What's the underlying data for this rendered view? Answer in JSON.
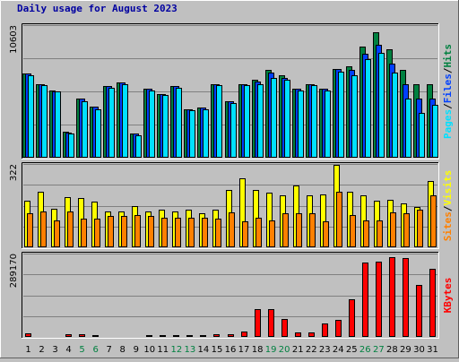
{
  "chart_data": {
    "type": "bar",
    "title": "Daily usage for August 2023",
    "categories": [
      "1",
      "2",
      "3",
      "4",
      "5",
      "6",
      "7",
      "8",
      "9",
      "10",
      "11",
      "12",
      "13",
      "14",
      "15",
      "16",
      "17",
      "18",
      "19",
      "20",
      "21",
      "22",
      "23",
      "24",
      "25",
      "26",
      "27",
      "28",
      "29",
      "30",
      "31"
    ],
    "weekend_days": [
      "5",
      "6",
      "12",
      "13",
      "19",
      "20",
      "26",
      "27"
    ],
    "colors": {
      "hits": "#008040",
      "files": "#0040ff",
      "pages": "#00e0ff",
      "visits": "#ffff00",
      "sites": "#ff8000",
      "kbytes": "#ff0000",
      "weekday_label": "#000000",
      "weekend_label": "#008040",
      "title": "#0000a0",
      "separator": "#000000"
    },
    "panels": [
      {
        "name": "hits-files-pages",
        "max_label": "10603",
        "ymax": 10603,
        "legend": [
          {
            "label": "Pages",
            "color": "#00e0ff"
          },
          {
            "label": "/",
            "color": "#000000"
          },
          {
            "label": "Files",
            "color": "#0040ff"
          },
          {
            "label": "/",
            "color": "#000000"
          },
          {
            "label": "Hits",
            "color": "#008040"
          }
        ],
        "series": [
          {
            "name": "Hits",
            "color": "#008040",
            "values": [
              6700,
              5900,
              5400,
              2100,
              4700,
              4100,
              5700,
              6000,
              1900,
              5500,
              5100,
              5700,
              3900,
              4000,
              5900,
              4500,
              5900,
              6200,
              7000,
              6600,
              5500,
              5900,
              5500,
              7100,
              7300,
              8900,
              10000,
              8700,
              7000,
              5900,
              5900
            ]
          },
          {
            "name": "Files",
            "color": "#0040ff",
            "values": [
              6700,
              5900,
              5300,
              2000,
              4700,
              4100,
              5700,
              6000,
              1900,
              5500,
              5100,
              5700,
              3900,
              4000,
              5900,
              4500,
              5900,
              6100,
              6800,
              6400,
              5500,
              5900,
              5500,
              7100,
              7000,
              8300,
              9000,
              7500,
              5900,
              4700,
              4700
            ]
          },
          {
            "name": "Pages",
            "color": "#00e0ff",
            "values": [
              6600,
              5800,
              5300,
              1900,
              4500,
              3900,
              5600,
              5900,
              1800,
              5400,
              5000,
              5600,
              3800,
              3900,
              5800,
              4400,
              5800,
              5900,
              6400,
              6200,
              5400,
              5800,
              5400,
              6900,
              6600,
              7900,
              8400,
              6800,
              4700,
              3600,
              4200
            ]
          }
        ]
      },
      {
        "name": "visits-sites",
        "max_label": "322",
        "ymax": 322,
        "legend": [
          {
            "label": "Sites",
            "color": "#ff8000"
          },
          {
            "label": "/",
            "color": "#000000"
          },
          {
            "label": "Visits",
            "color": "#ffff00"
          }
        ],
        "series": [
          {
            "name": "Visits",
            "color": "#ffff00",
            "values": [
              180,
              215,
              150,
              195,
              190,
              175,
              140,
              140,
              160,
              140,
              145,
              140,
              145,
              130,
              145,
              220,
              265,
              220,
              210,
              200,
              240,
              200,
              205,
              320,
              215,
              200,
              180,
              185,
              170,
              155,
              255
            ]
          },
          {
            "name": "Sites",
            "color": "#ff8000",
            "values": [
              130,
              140,
              105,
              140,
              110,
              110,
              120,
              120,
              125,
              120,
              115,
              115,
              115,
              115,
              110,
              135,
              100,
              115,
              105,
              130,
              130,
              130,
              100,
              215,
              125,
              105,
              105,
              135,
              130,
              145,
              200
            ]
          }
        ]
      },
      {
        "name": "kbytes",
        "max_label": "289170",
        "ymax": 289170,
        "legend": [
          {
            "label": "KBytes",
            "color": "#ff0000"
          }
        ],
        "series": [
          {
            "name": "KBytes",
            "color": "#ff0000",
            "values": [
              12000,
              3000,
              3000,
              8000,
              9000,
              6000,
              4000,
              4000,
              4000,
              6000,
              6000,
              6000,
              5000,
              5000,
              8000,
              9000,
              20000,
              95000,
              95000,
              62000,
              15000,
              15000,
              48000,
              58000,
              132000,
              258000,
              260000,
              277000,
              275000,
              180000,
              235000
            ]
          }
        ]
      }
    ]
  }
}
